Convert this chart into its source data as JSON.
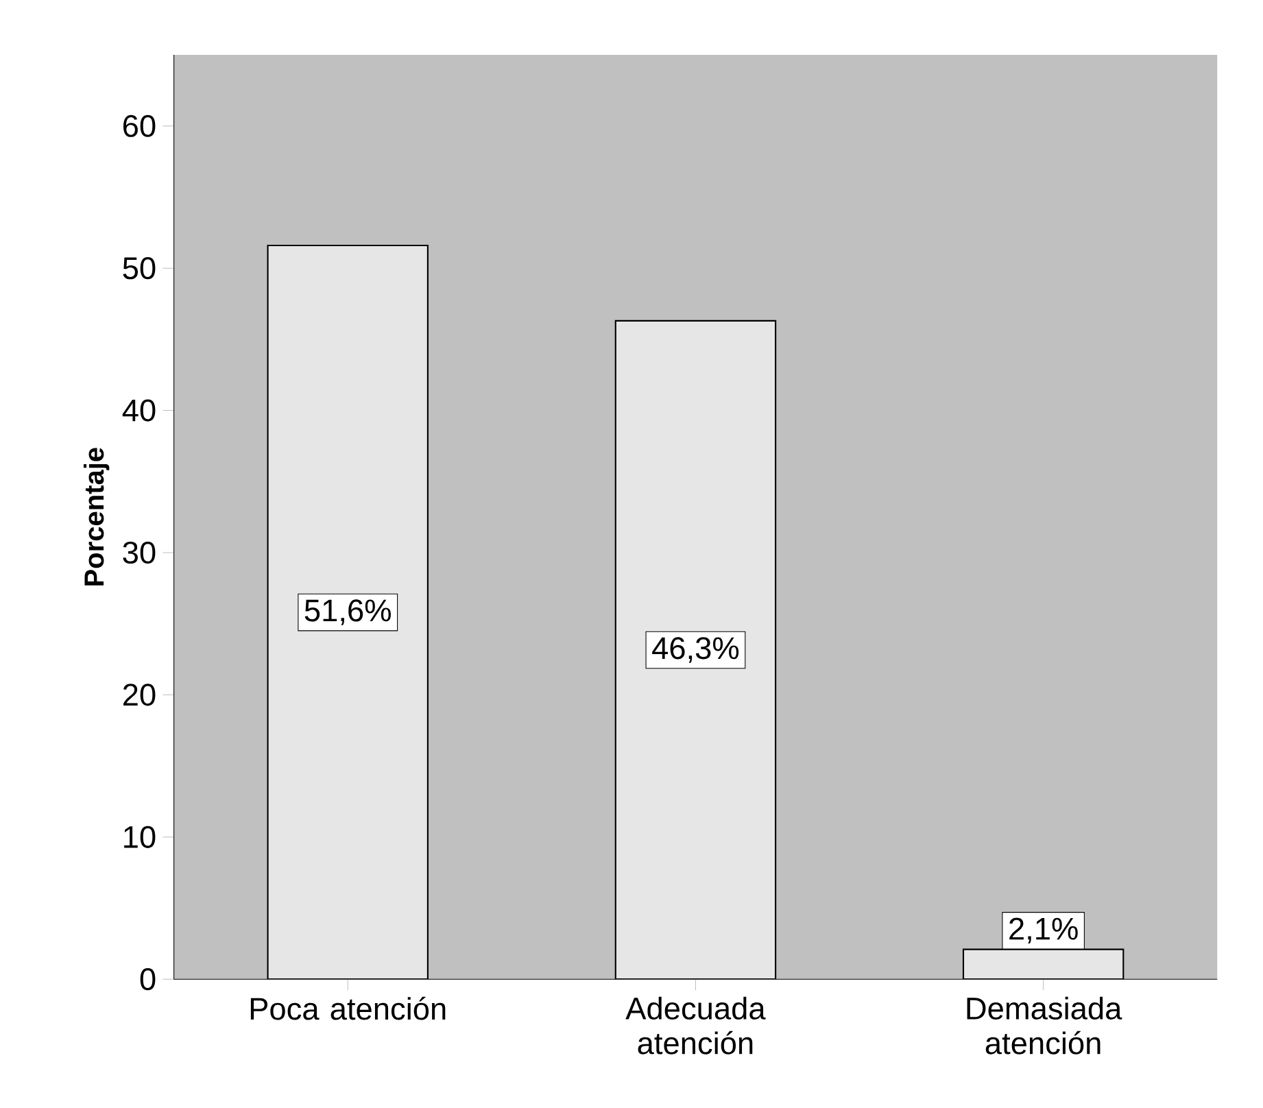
{
  "chart_data": {
    "type": "bar",
    "ylabel": "Porcentaje",
    "categories": [
      "Poca atención",
      "Adecuada atención",
      "Demasiada atención"
    ],
    "values": [
      51.6,
      46.3,
      2.1
    ],
    "value_labels": [
      "51,6%",
      "46,3%",
      "2,1%"
    ],
    "color": "#e6e6e6",
    "ylim": [
      0,
      65
    ],
    "yticks": [
      0,
      10,
      20,
      30,
      40,
      50,
      60
    ]
  }
}
